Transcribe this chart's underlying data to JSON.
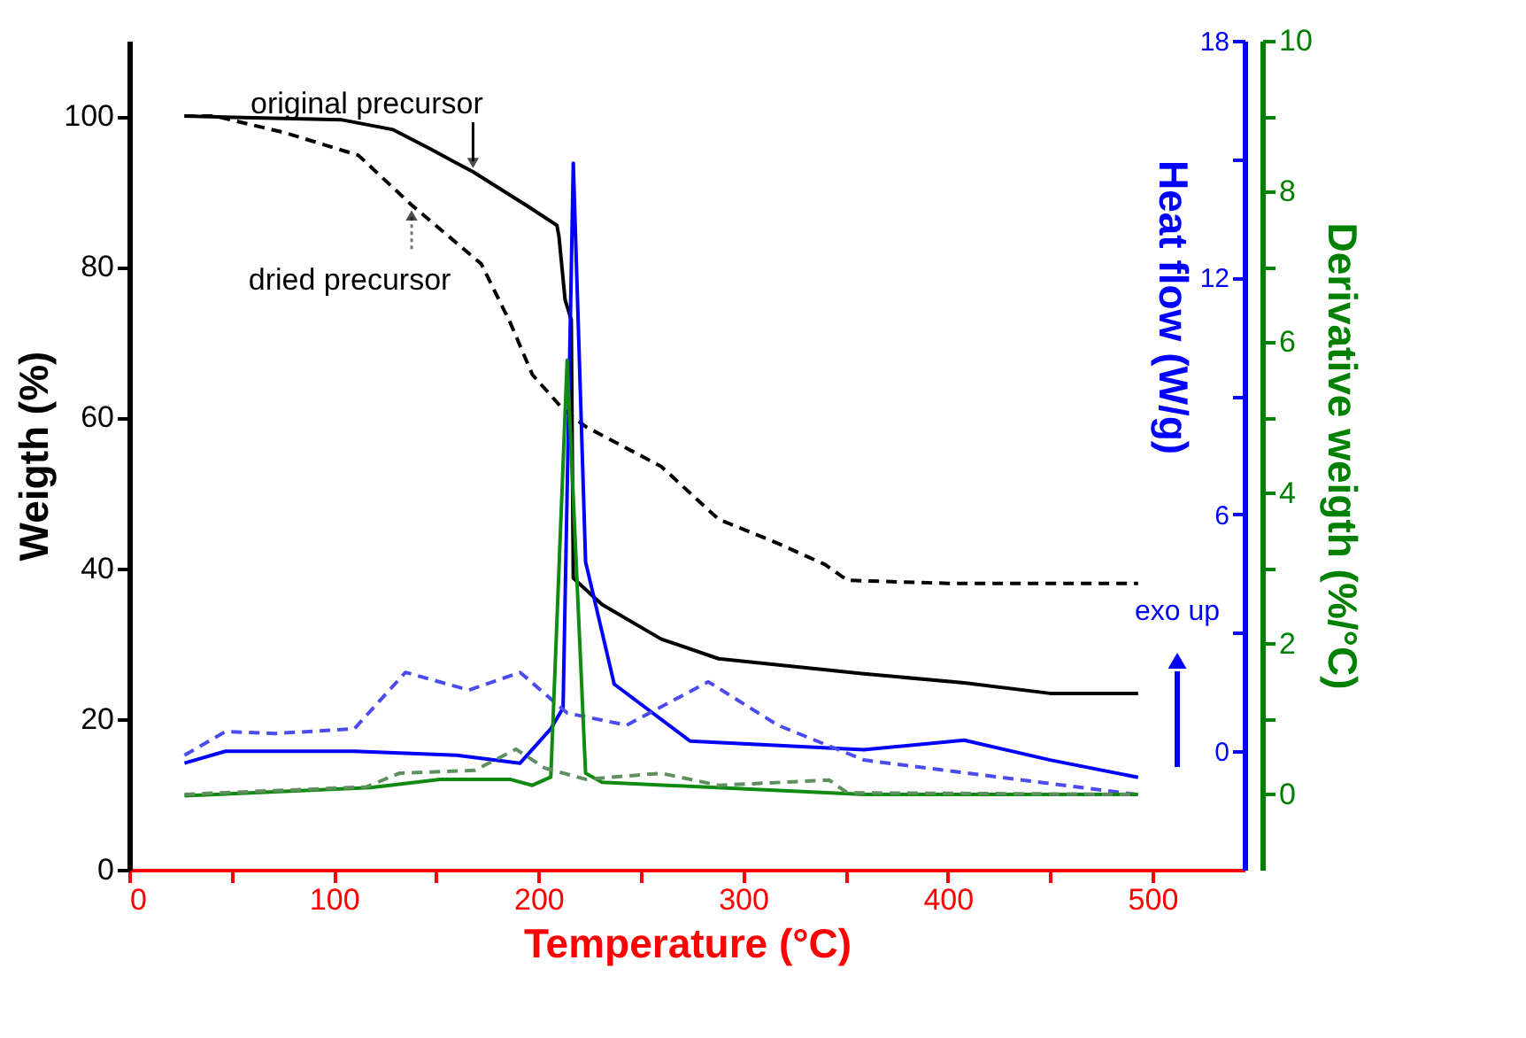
{
  "chart_data": {
    "type": "line",
    "xlabel": "Temperature (°C)",
    "ylabel": "Weigth (%)",
    "y2label": "Heat flow (W/g)",
    "y3label": "Derivative weigth (%/°C)",
    "xlim": [
      0,
      545
    ],
    "xticks": [
      0,
      {
        "value": 50,
        "label": null
      },
      100,
      {
        "value": 150,
        "label": null
      },
      200,
      {
        "value": 250,
        "label": null
      },
      300,
      {
        "value": 350,
        "label": null
      },
      400,
      {
        "value": 450,
        "label": null
      },
      500
    ],
    "ylim": [
      0,
      110
    ],
    "yticks": [
      0,
      20,
      40,
      60,
      80,
      100
    ],
    "y2lim": [
      -3,
      18
    ],
    "y2ticks": [
      0,
      {
        "value": 3,
        "label": null
      },
      6,
      {
        "value": 9,
        "label": null
      },
      12,
      {
        "value": 15,
        "label": null
      },
      18
    ],
    "y3lim": [
      -1,
      10
    ],
    "y3ticks": [
      0,
      {
        "value": 1,
        "label": null
      },
      2,
      {
        "value": 3,
        "label": null
      },
      4,
      {
        "value": 5,
        "label": null
      },
      6,
      {
        "value": 7,
        "label": null
      },
      8,
      {
        "value": 9,
        "label": null
      },
      10
    ],
    "annotations": [
      {
        "text": "original precursor",
        "x": 168,
        "y": 92.6
      },
      {
        "text": "dried precursor",
        "x": 138,
        "y": 88
      },
      "exo up"
    ],
    "series": [
      {
        "color": "#000000",
        "line_style": "solid",
        "x": [
          27,
          104,
          129,
          146,
          168,
          195,
          209,
          210,
          213,
          216,
          217,
          231,
          260,
          288,
          359,
          408,
          450,
          493
        ],
        "values": [
          100,
          99.5,
          98.2,
          95.8,
          92.6,
          88,
          85.5,
          84,
          75.6,
          73,
          38.7,
          35.2,
          30.6,
          28,
          26,
          24.8,
          23.4,
          23.4
        ]
      },
      {
        "color": "#000000",
        "line_style": "dashed",
        "x": [
          27,
          42,
          76,
          112,
          138,
          172,
          186,
          197,
          212,
          223,
          260,
          288,
          317,
          340,
          351,
          400,
          493
        ],
        "values": [
          100,
          100,
          97.8,
          94.8,
          88.2,
          80.4,
          72.7,
          65.7,
          61.1,
          58.8,
          53.5,
          46.5,
          43.3,
          40.5,
          38.4,
          38,
          38
        ]
      },
      {
        "color": "#0000ff",
        "line_style": "solid",
        "axis": "y2",
        "x": [
          27,
          47,
          110,
          160,
          191,
          206,
          212,
          217,
          223,
          237,
          274,
          359,
          408,
          450,
          493
        ],
        "values": [
          -0.3,
          0,
          0,
          -0.1,
          -0.3,
          0.57,
          1.1,
          14.9,
          4.8,
          1.7,
          0.26,
          0.04,
          0.28,
          -0.22,
          -0.66
        ]
      },
      {
        "color": "#4b4bf0",
        "line_style": "dashed",
        "axis": "y2",
        "x": [
          27,
          47,
          71,
          110,
          135,
          166,
          191,
          214,
          243,
          283,
          317,
          359,
          493
        ],
        "values": [
          -0.1,
          0.5,
          0.45,
          0.57,
          2,
          1.55,
          2,
          0.97,
          0.66,
          1.76,
          0.66,
          -0.22,
          -1.1
        ]
      },
      {
        "color": "#108a10",
        "line_style": "solid",
        "axis": "y3",
        "x": [
          27,
          118,
          152,
          186,
          197,
          206,
          214,
          223,
          231,
          359,
          493
        ],
        "values": [
          -0.02,
          0.09,
          0.2,
          0.2,
          0.12,
          0.23,
          5.76,
          0.28,
          0.16,
          0,
          0
        ]
      },
      {
        "color": "#5f8f5f",
        "line_style": "dashed",
        "axis": "y3",
        "x": [
          27,
          116,
          132,
          169,
          189,
          203,
          223,
          260,
          288,
          342,
          351,
          493
        ],
        "values": [
          0,
          0.1,
          0.28,
          0.32,
          0.6,
          0.35,
          0.2,
          0.28,
          0.12,
          0.19,
          0.02,
          0
        ]
      }
    ]
  }
}
